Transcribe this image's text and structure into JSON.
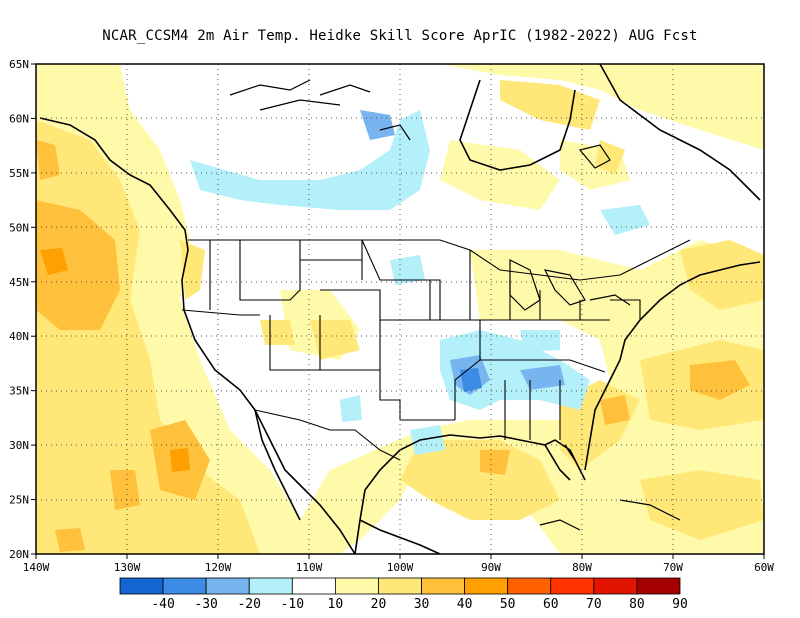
{
  "title": "NCAR_CCSM4  2m Air Temp. Heidke Skill Score AprIC (1982-2022) AUG Fcst",
  "map": {
    "lon_range": [
      -140,
      -60
    ],
    "lat_range": [
      20,
      65
    ],
    "x_ticks": [
      "140W",
      "130W",
      "120W",
      "110W",
      "100W",
      "90W",
      "80W",
      "70W",
      "60W"
    ],
    "y_ticks": [
      "65N",
      "60N",
      "55N",
      "50N",
      "45N",
      "40N",
      "35N",
      "30N",
      "25N",
      "20N"
    ],
    "grid": "dotted",
    "projection": "lat-lon"
  },
  "colorbar": {
    "levels": [
      "-40",
      "-30",
      "-20",
      "-10",
      "10",
      "20",
      "30",
      "40",
      "50",
      "60",
      "70",
      "80",
      "90"
    ],
    "colors": [
      "#1464d2",
      "#3c8ce6",
      "#78b4f0",
      "#b4f0fa",
      "#ffffff",
      "#fffaaa",
      "#ffe878",
      "#ffc03c",
      "#ffa000",
      "#ff6000",
      "#ff3200",
      "#e11400",
      "#a50000"
    ]
  },
  "regions": [
    {
      "name": "Pacific west of Canada/US",
      "level": "30-40"
    },
    {
      "name": "Pacific off Baja California",
      "level": "30-40"
    },
    {
      "name": "Pacific Northwest coast",
      "level": "20-30"
    },
    {
      "name": "Western Canada prairies",
      "level": "-10 to -20"
    },
    {
      "name": "Hudson Bay region",
      "level": "-10 to -20"
    },
    {
      "name": "Lower Mississippi / Tennessee Valley",
      "level": "-20 to -40"
    },
    {
      "name": "Gulf of Mexico",
      "level": "20-30"
    },
    {
      "name": "Atlantic off Southeast US",
      "level": "20-40"
    },
    {
      "name": "Great Lakes / Northeast US",
      "level": "10-20"
    },
    {
      "name": "Northeast Canada",
      "level": "10-20"
    }
  ]
}
